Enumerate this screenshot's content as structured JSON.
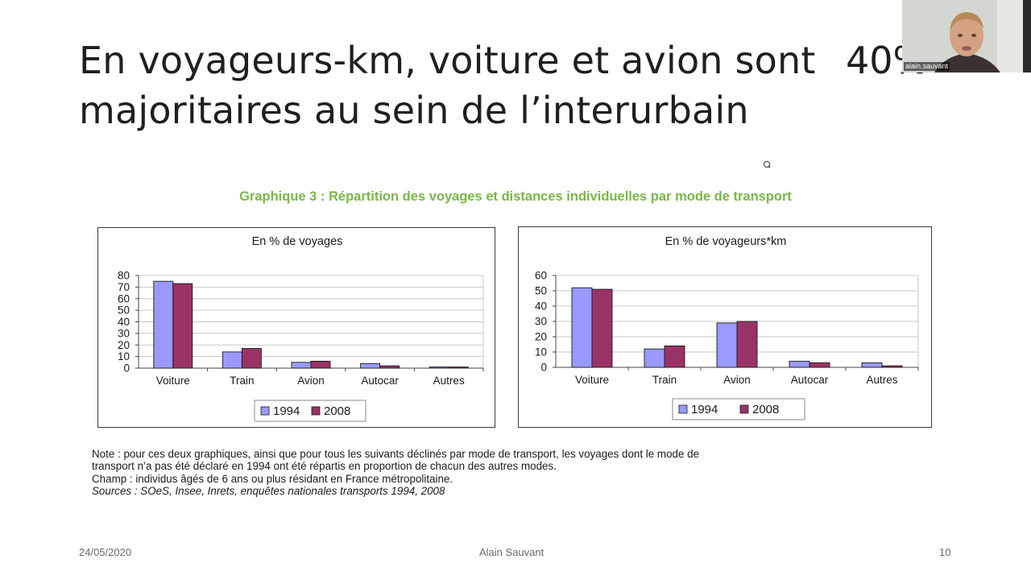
{
  "slide": {
    "title_line1": "En voyageurs-km, voiture et avion sont",
    "title_line2": "majoritaires au sein de l’interurbain",
    "title_side": "40%"
  },
  "webcam": {
    "label": "alain.sauvant"
  },
  "figure": {
    "title": "Graphique 3 : Répartition des voyages et distances individuelles par mode de transport"
  },
  "chart_data": [
    {
      "type": "bar",
      "title": "En % de voyages",
      "categories": [
        "Voiture",
        "Train",
        "Avion",
        "Autocar",
        "Autres"
      ],
      "series": [
        {
          "name": "1994",
          "values": [
            75,
            14,
            5,
            4,
            1
          ],
          "color": "#9999ff"
        },
        {
          "name": "2008",
          "values": [
            73,
            17,
            6,
            2,
            1
          ],
          "color": "#993366"
        }
      ],
      "ylim": [
        0,
        80
      ],
      "yticks": [
        0,
        10,
        20,
        30,
        40,
        50,
        60,
        70,
        80
      ],
      "grid": true,
      "legend": "bottom"
    },
    {
      "type": "bar",
      "title": "En % de voyageurs*km",
      "categories": [
        "Voiture",
        "Train",
        "Avion",
        "Autocar",
        "Autres"
      ],
      "series": [
        {
          "name": "1994",
          "values": [
            52,
            12,
            29,
            4,
            3
          ],
          "color": "#9999ff"
        },
        {
          "name": "2008",
          "values": [
            51,
            14,
            30,
            3,
            1
          ],
          "color": "#993366"
        }
      ],
      "ylim": [
        0,
        60
      ],
      "yticks": [
        0,
        10,
        20,
        30,
        40,
        50,
        60
      ],
      "grid": true,
      "legend": "bottom"
    }
  ],
  "note": {
    "line1": "Note : pour ces deux graphiques, ainsi que pour tous les suivants déclinés par mode de transport, les voyages dont le mode de",
    "line2": "transport n’a pas été déclaré en 1994 ont été répartis en proportion de chacun des autres modes.",
    "line3": "Champ : individus âgés de 6 ans ou plus résidant en France métropolitaine.",
    "line4": "Sources : SOeS, Insee, Inrets, enquêtes nationales transports 1994, 2008"
  },
  "footer": {
    "date": "24/05/2020",
    "author": "Alain Sauvant",
    "page": "10"
  }
}
